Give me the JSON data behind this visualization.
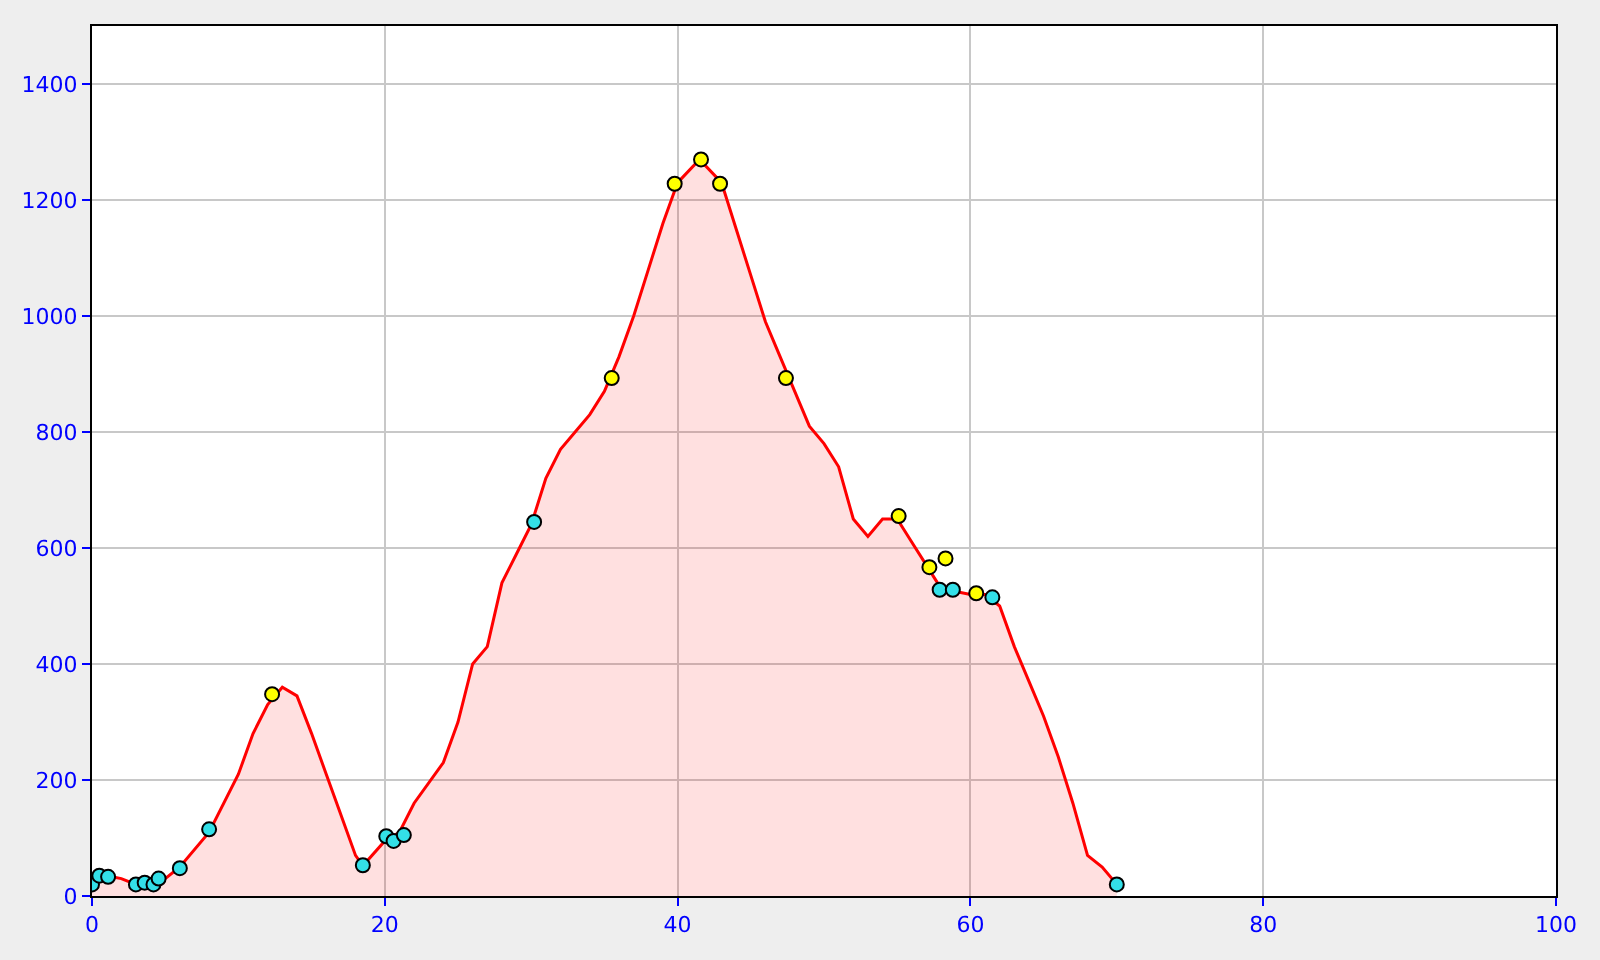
{
  "chart_data": {
    "type": "area",
    "xlim": [
      0,
      100
    ],
    "xticks": [
      0,
      20,
      40,
      60,
      80,
      100
    ],
    "ylim": [
      0,
      1500
    ],
    "yticks": [
      0,
      200,
      400,
      600,
      800,
      1000,
      1200,
      1400
    ],
    "grid": true,
    "series": [
      {
        "color": "#ff0000",
        "x": [
          0,
          1,
          2,
          3,
          4,
          5,
          6,
          8,
          10,
          11,
          12,
          13,
          14,
          15,
          16,
          17,
          18,
          18.5,
          20,
          21,
          22,
          24,
          25,
          26,
          27,
          28,
          29,
          30,
          31,
          32,
          33,
          34,
          35,
          36,
          37,
          38,
          39,
          40,
          41.5,
          43,
          44,
          45,
          46,
          47,
          48,
          49,
          50,
          51,
          52,
          53,
          54,
          55,
          56,
          57,
          58,
          59,
          60,
          61,
          62,
          63,
          64,
          65,
          66,
          67,
          68,
          69,
          70
        ],
        "values": [
          20,
          35,
          30,
          20,
          22,
          30,
          50,
          110,
          210,
          280,
          330,
          360,
          345,
          280,
          210,
          140,
          70,
          52,
          95,
          110,
          160,
          230,
          300,
          400,
          430,
          540,
          590,
          640,
          720,
          770,
          800,
          830,
          870,
          930,
          1000,
          1080,
          1160,
          1230,
          1270,
          1230,
          1150,
          1070,
          990,
          930,
          870,
          810,
          780,
          740,
          650,
          620,
          650,
          650,
          610,
          570,
          530,
          525,
          520,
          520,
          500,
          430,
          370,
          310,
          240,
          160,
          70,
          50,
          20
        ]
      },
      {
        "type": "scatter",
        "color": "#33e0e8",
        "marker": "circle",
        "x": [
          0,
          0.5,
          1.1,
          3,
          3.6,
          4.2,
          4.55,
          6,
          8,
          18.5,
          20.1,
          20.6,
          21.3,
          30.2,
          57.9,
          58.8,
          61.5,
          70
        ],
        "values": [
          20,
          35,
          33,
          20,
          23,
          20,
          30,
          48,
          115,
          53,
          103,
          95,
          105,
          645,
          528,
          528,
          515,
          20
        ]
      },
      {
        "type": "scatter",
        "color": "#ffff00",
        "marker": "circle",
        "x": [
          12.3,
          35.5,
          39.8,
          41.6,
          42.9,
          47.4,
          55.1,
          57.2,
          58.3,
          60.4
        ],
        "values": [
          348,
          893,
          1228,
          1270,
          1228,
          893,
          655,
          567,
          582,
          522
        ]
      }
    ]
  }
}
